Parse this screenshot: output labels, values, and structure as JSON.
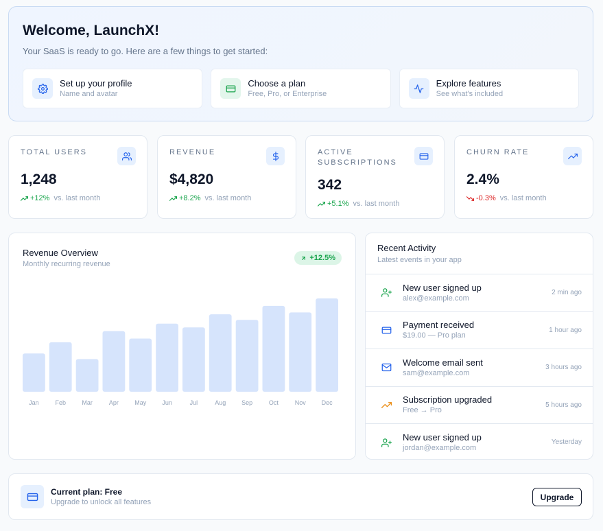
{
  "welcome": {
    "title": "Welcome, LaunchX!",
    "subtitle": "Your SaaS is ready to go. Here are a few things to get started:",
    "steps": [
      {
        "title": "Set up your profile",
        "desc": "Name and avatar",
        "icon": "gear-icon"
      },
      {
        "title": "Choose a plan",
        "desc": "Free, Pro, or Enterprise",
        "icon": "credit-card-icon"
      },
      {
        "title": "Explore features",
        "desc": "See what's included",
        "icon": "activity-icon"
      }
    ]
  },
  "kpis": [
    {
      "label": "Total Users",
      "value": "1,248",
      "delta": "+12%",
      "direction": "up",
      "note": "vs. last month",
      "icon": "users-icon"
    },
    {
      "label": "Revenue",
      "value": "$4,820",
      "delta": "+8.2%",
      "direction": "up",
      "note": "vs. last month",
      "icon": "dollar-icon"
    },
    {
      "label": "Active Subscriptions",
      "value": "342",
      "delta": "+5.1%",
      "direction": "up",
      "note": "vs. last month",
      "icon": "credit-card-icon"
    },
    {
      "label": "Churn Rate",
      "value": "2.4%",
      "delta": "-0.3%",
      "direction": "down",
      "note": "vs. last month",
      "icon": "trending-up-icon"
    }
  ],
  "revenue": {
    "title": "Revenue Overview",
    "subtitle": "Monthly recurring revenue",
    "badge": "+12.5%"
  },
  "chart_data": {
    "type": "bar",
    "title": "Revenue Overview",
    "subtitle": "Monthly recurring revenue",
    "categories": [
      "Jan",
      "Feb",
      "Mar",
      "Apr",
      "May",
      "Jun",
      "Jul",
      "Aug",
      "Sep",
      "Oct",
      "Nov",
      "Dec"
    ],
    "values": [
      41,
      53,
      35,
      65,
      57,
      73,
      69,
      83,
      77,
      92,
      85,
      100
    ],
    "ylim": [
      0,
      100
    ],
    "grid": false,
    "legend": "none",
    "bar_color": "#d6e4fc"
  },
  "activity": {
    "title": "Recent Activity",
    "subtitle": "Latest events in your app",
    "items": [
      {
        "main": "New user signed up",
        "detail": "alex@example.com",
        "time": "2 min ago",
        "icon": "user-plus-icon",
        "color": "#16a34a"
      },
      {
        "main": "Payment received",
        "detail": "$19.00 — Pro plan",
        "time": "1 hour ago",
        "icon": "credit-card-icon",
        "color": "#2563eb"
      },
      {
        "main": "Welcome email sent",
        "detail": "sam@example.com",
        "time": "3 hours ago",
        "icon": "mail-icon",
        "color": "#2563eb"
      },
      {
        "main": "Subscription upgraded",
        "detail": "Free → Pro",
        "time": "5 hours ago",
        "icon": "trending-up-icon",
        "color": "#ea8a10"
      },
      {
        "main": "New user signed up",
        "detail": "jordan@example.com",
        "time": "Yesterday",
        "icon": "user-plus-icon",
        "color": "#16a34a"
      }
    ]
  },
  "plan": {
    "title": "Current plan: Free",
    "desc": "Upgrade to unlock all features",
    "button": "Upgrade"
  },
  "colors": {
    "accent": "#2563eb",
    "success": "#16a34a",
    "danger": "#dc2626",
    "bar": "#d6e4fc"
  }
}
